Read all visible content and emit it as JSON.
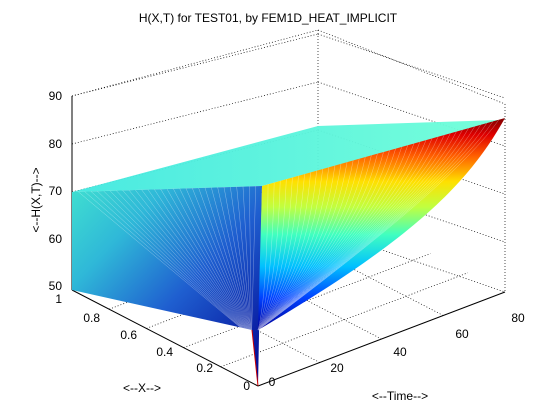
{
  "chart_data": {
    "type": "surface",
    "title": "H(X,T) for TEST01, by FEM1D_HEAT_IMPLICIT",
    "xlabel": "<--X-->",
    "ylabel": "<--Time-->",
    "zlabel": "<--H(X,T)-->",
    "x_ticks": [
      "0",
      "0.2",
      "0.4",
      "0.6",
      "0.8",
      "1"
    ],
    "t_ticks": [
      "0",
      "20",
      "40",
      "60",
      "80"
    ],
    "z_ticks": [
      "50",
      "60",
      "70",
      "80",
      "90"
    ],
    "xlim": [
      0,
      1
    ],
    "tlim": [
      0,
      80
    ],
    "zlim": [
      50,
      90
    ],
    "grid": true,
    "colormap": "jet",
    "surface": {
      "boundary_x0": {
        "t": [
          0,
          80
        ],
        "h": [
          50,
          50
        ]
      },
      "boundary_x1": {
        "t": [
          0,
          80
        ],
        "h": [
          69,
          84
        ]
      },
      "t_start": {
        "x": [
          0,
          0.5,
          1
        ],
        "h": [
          50,
          50,
          69
        ]
      },
      "t_end": {
        "x": [
          0,
          0.5,
          1
        ],
        "h": [
          50,
          86,
          84
        ]
      }
    }
  }
}
